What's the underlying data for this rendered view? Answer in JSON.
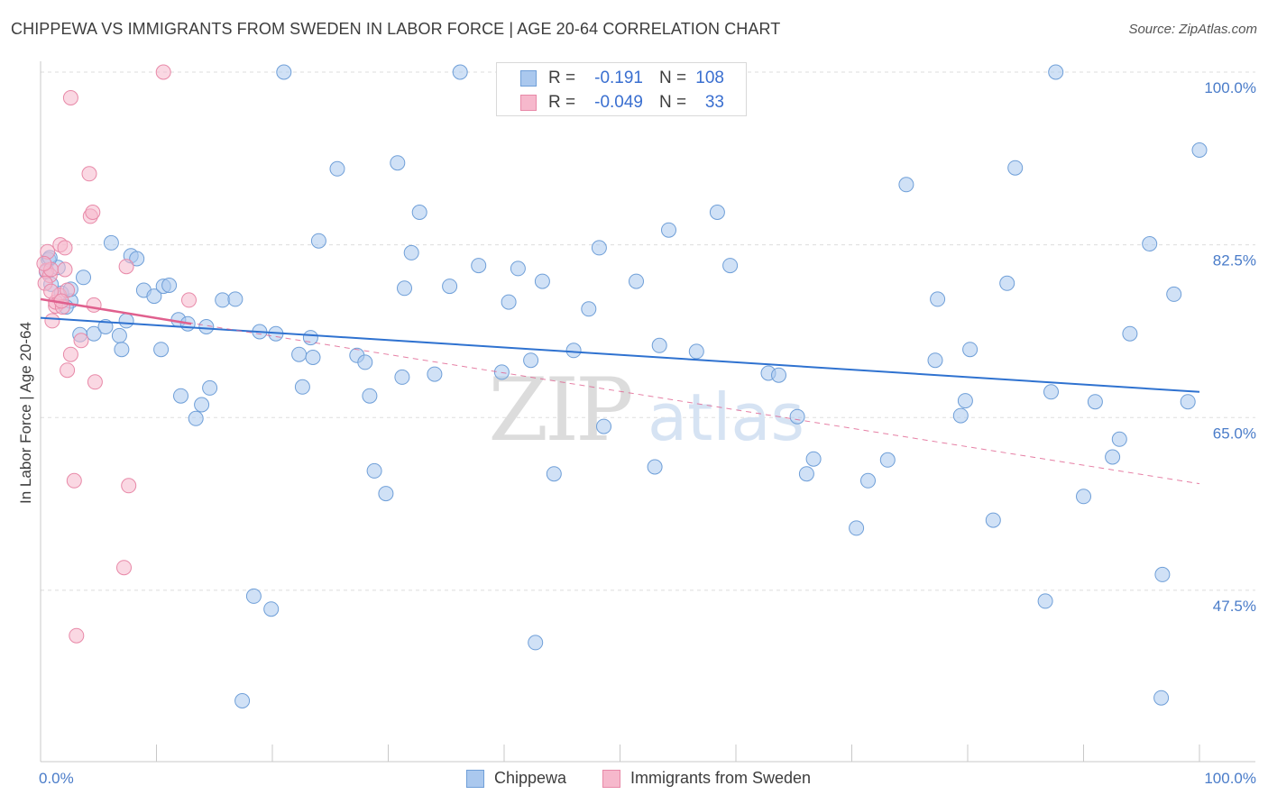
{
  "title": "CHIPPEWA VS IMMIGRANTS FROM SWEDEN IN LABOR FORCE | AGE 20-64 CORRELATION CHART",
  "source": "Source: ZipAtlas.com",
  "watermark": {
    "zip": "ZIP",
    "atlas": "atlas"
  },
  "legend": {
    "r_label": "R =",
    "n_label": "N =",
    "series1": {
      "r": "-0.191",
      "n": "108"
    },
    "series2": {
      "r": "-0.049",
      "n": "33"
    }
  },
  "colors": {
    "blue_fill": "#aac8ee",
    "blue_stroke": "#6f9fd8",
    "blue_line": "#2f72d0",
    "pink_fill": "#f6b8cc",
    "pink_stroke": "#e889a8",
    "pink_line": "#e0608e",
    "axis_text": "#4a7cc9"
  },
  "chart_data": {
    "type": "scatter",
    "title": "CHIPPEWA VS IMMIGRANTS FROM SWEDEN IN LABOR FORCE | AGE 20-64 CORRELATION CHART",
    "xlabel": "",
    "ylabel": "In Labor Force | Age 20-64",
    "xlim": [
      0,
      100
    ],
    "ylim": [
      29.5,
      101.5
    ],
    "x_tick_labels": [
      "0.0%",
      "100.0%"
    ],
    "y_ticks": [
      {
        "value": 100.0,
        "label": "100.0%"
      },
      {
        "value": 82.5,
        "label": "82.5%"
      },
      {
        "value": 65.0,
        "label": "65.0%"
      },
      {
        "value": 47.5,
        "label": "47.5%"
      }
    ],
    "grid": true,
    "legend_position": "top-center",
    "series": [
      {
        "name": "Chippewa",
        "r": -0.191,
        "n": 108,
        "trend": {
          "x": [
            0,
            100
          ],
          "y": [
            75.1,
            67.6
          ],
          "style": "solid"
        },
        "points": [
          [
            0.7,
            81.0
          ],
          [
            0.5,
            79.8
          ],
          [
            0.9,
            78.5
          ],
          [
            1.5,
            80.2
          ],
          [
            1.8,
            77.6
          ],
          [
            2.6,
            76.8
          ],
          [
            2.6,
            78.0
          ],
          [
            2.2,
            76.2
          ],
          [
            3.7,
            79.2
          ],
          [
            3.4,
            73.4
          ],
          [
            4.6,
            73.5
          ],
          [
            5.6,
            74.2
          ],
          [
            6.1,
            82.7
          ],
          [
            6.8,
            73.3
          ],
          [
            7.4,
            74.8
          ],
          [
            7.0,
            71.9
          ],
          [
            7.8,
            81.4
          ],
          [
            8.3,
            81.1
          ],
          [
            8.9,
            77.9
          ],
          [
            9.8,
            77.3
          ],
          [
            10.6,
            78.3
          ],
          [
            11.1,
            78.4
          ],
          [
            10.4,
            71.9
          ],
          [
            11.9,
            74.9
          ],
          [
            12.7,
            74.5
          ],
          [
            12.1,
            67.2
          ],
          [
            13.4,
            64.9
          ],
          [
            13.9,
            66.3
          ],
          [
            14.6,
            68.0
          ],
          [
            14.3,
            74.2
          ],
          [
            15.7,
            76.9
          ],
          [
            16.8,
            77.0
          ],
          [
            17.4,
            36.3
          ],
          [
            18.4,
            46.9
          ],
          [
            18.9,
            73.7
          ],
          [
            19.9,
            45.6
          ],
          [
            21.0,
            100.0
          ],
          [
            20.3,
            73.5
          ],
          [
            22.3,
            71.4
          ],
          [
            22.6,
            68.1
          ],
          [
            23.3,
            73.1
          ],
          [
            23.5,
            71.1
          ],
          [
            24.0,
            82.9
          ],
          [
            25.6,
            90.2
          ],
          [
            27.3,
            71.3
          ],
          [
            28.0,
            70.6
          ],
          [
            28.4,
            67.2
          ],
          [
            28.8,
            59.6
          ],
          [
            29.8,
            57.3
          ],
          [
            30.8,
            90.8
          ],
          [
            31.2,
            69.1
          ],
          [
            31.4,
            78.1
          ],
          [
            32.0,
            81.7
          ],
          [
            32.7,
            85.8
          ],
          [
            34.0,
            69.4
          ],
          [
            35.3,
            78.3
          ],
          [
            36.2,
            100.0
          ],
          [
            37.8,
            80.4
          ],
          [
            39.8,
            69.6
          ],
          [
            40.4,
            76.7
          ],
          [
            41.2,
            80.1
          ],
          [
            42.7,
            42.2
          ],
          [
            42.3,
            70.8
          ],
          [
            43.3,
            78.8
          ],
          [
            44.3,
            59.3
          ],
          [
            46.0,
            71.8
          ],
          [
            47.3,
            76.0
          ],
          [
            48.2,
            82.2
          ],
          [
            48.6,
            64.1
          ],
          [
            51.4,
            78.8
          ],
          [
            53.0,
            60.0
          ],
          [
            53.4,
            72.3
          ],
          [
            54.2,
            84.0
          ],
          [
            56.6,
            71.7
          ],
          [
            58.4,
            85.8
          ],
          [
            59.5,
            80.4
          ],
          [
            62.8,
            69.5
          ],
          [
            63.7,
            69.3
          ],
          [
            65.3,
            65.1
          ],
          [
            66.1,
            59.3
          ],
          [
            66.7,
            60.8
          ],
          [
            70.4,
            53.8
          ],
          [
            71.4,
            58.6
          ],
          [
            73.1,
            60.7
          ],
          [
            74.7,
            88.6
          ],
          [
            77.2,
            70.8
          ],
          [
            77.4,
            77.0
          ],
          [
            79.4,
            65.2
          ],
          [
            79.8,
            66.7
          ],
          [
            80.2,
            71.9
          ],
          [
            82.2,
            54.6
          ],
          [
            83.4,
            78.6
          ],
          [
            84.1,
            90.3
          ],
          [
            86.7,
            46.4
          ],
          [
            87.2,
            67.6
          ],
          [
            87.6,
            100.0
          ],
          [
            90.0,
            57.0
          ],
          [
            91.0,
            66.6
          ],
          [
            92.5,
            61.0
          ],
          [
            93.1,
            62.8
          ],
          [
            94.0,
            73.5
          ],
          [
            95.7,
            82.6
          ],
          [
            96.7,
            36.6
          ],
          [
            96.8,
            49.1
          ],
          [
            97.8,
            77.5
          ],
          [
            99.0,
            66.6
          ],
          [
            100.0,
            92.1
          ],
          [
            0.8,
            81.2
          ]
        ]
      },
      {
        "name": "Immigrants from Sweden",
        "r": -0.049,
        "n": 33,
        "trend": {
          "x": [
            0,
            13
          ],
          "y": [
            77.0,
            74.5
          ],
          "style": "solid"
        },
        "trend_extended": {
          "x": [
            0,
            100
          ],
          "y": [
            77.0,
            58.3
          ],
          "style": "dashed"
        },
        "points": [
          [
            0.6,
            81.8
          ],
          [
            0.5,
            79.9
          ],
          [
            0.8,
            79.4
          ],
          [
            0.4,
            78.6
          ],
          [
            0.9,
            80.0
          ],
          [
            1.3,
            76.3
          ],
          [
            1.3,
            76.7
          ],
          [
            1.6,
            77.4
          ],
          [
            1.7,
            82.5
          ],
          [
            1.9,
            76.2
          ],
          [
            2.1,
            82.2
          ],
          [
            2.3,
            69.8
          ],
          [
            2.1,
            80.0
          ],
          [
            2.3,
            77.9
          ],
          [
            2.6,
            71.4
          ],
          [
            2.6,
            97.4
          ],
          [
            2.9,
            58.6
          ],
          [
            3.1,
            42.9
          ],
          [
            3.5,
            72.8
          ],
          [
            4.2,
            89.7
          ],
          [
            4.3,
            85.4
          ],
          [
            4.5,
            85.8
          ],
          [
            4.6,
            76.4
          ],
          [
            4.7,
            68.6
          ],
          [
            7.2,
            49.8
          ],
          [
            7.4,
            80.3
          ],
          [
            7.6,
            58.1
          ],
          [
            10.6,
            100.0
          ],
          [
            12.8,
            76.9
          ],
          [
            1.0,
            74.8
          ],
          [
            0.3,
            80.6
          ],
          [
            1.8,
            76.8
          ],
          [
            0.9,
            77.8
          ]
        ]
      }
    ]
  }
}
